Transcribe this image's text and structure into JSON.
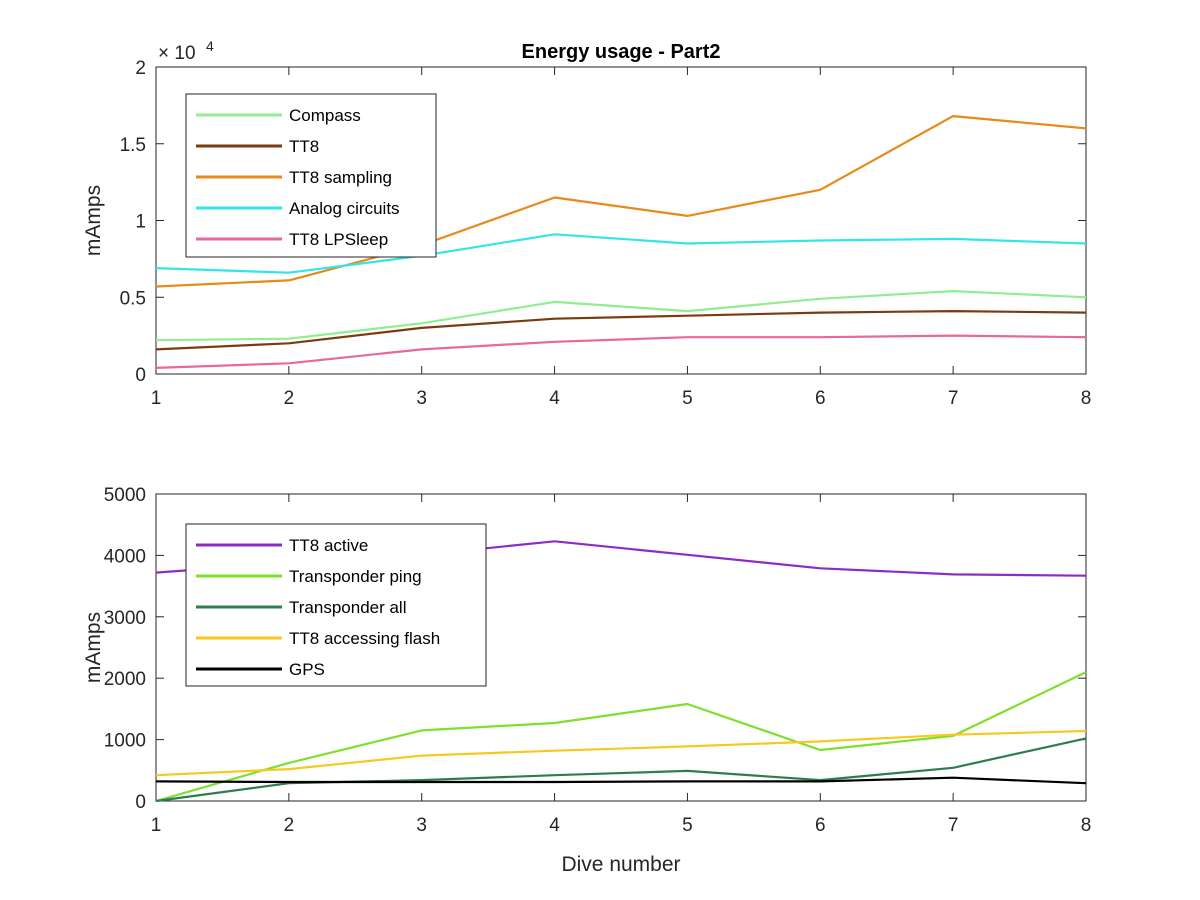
{
  "chart_data": [
    {
      "type": "line",
      "title": "Energy usage - Part2",
      "xlabel": "",
      "ylabel": "mAmps",
      "x": [
        1,
        2,
        3,
        4,
        5,
        6,
        7,
        8
      ],
      "xlim": [
        1,
        8
      ],
      "ylim": [
        0,
        20000
      ],
      "xticks": [
        "1",
        "2",
        "3",
        "4",
        "5",
        "6",
        "7",
        "8"
      ],
      "yticks": [
        0,
        5000,
        10000,
        15000,
        20000
      ],
      "ytick_labels": [
        "0",
        "0.5",
        "1",
        "1.5",
        "2"
      ],
      "y_exponent_label": "× 10",
      "y_exponent_power": "4",
      "grid": false,
      "legend_position": "top-left",
      "series": [
        {
          "name": "Compass",
          "color": "#90ee90",
          "values": [
            2200,
            2300,
            3300,
            4700,
            4100,
            4900,
            5400,
            5000
          ]
        },
        {
          "name": "TT8",
          "color": "#7a3b10",
          "values": [
            1600,
            2000,
            3000,
            3600,
            3800,
            4000,
            4100,
            4000
          ]
        },
        {
          "name": "TT8 sampling",
          "color": "#e8891a",
          "values": [
            5700,
            6100,
            8400,
            11500,
            10300,
            12000,
            16800,
            16000
          ]
        },
        {
          "name": "Analog circuits",
          "color": "#30e6e6",
          "values": [
            6900,
            6600,
            7700,
            9100,
            8500,
            8700,
            8800,
            8500
          ]
        },
        {
          "name": "TT8 LPSleep",
          "color": "#e6689e",
          "values": [
            400,
            700,
            1600,
            2100,
            2400,
            2400,
            2500,
            2400
          ]
        }
      ]
    },
    {
      "type": "line",
      "title": "",
      "xlabel": "Dive number",
      "ylabel": "mAmps",
      "x": [
        1,
        2,
        3,
        4,
        5,
        6,
        7,
        8
      ],
      "xlim": [
        1,
        8
      ],
      "ylim": [
        0,
        5000
      ],
      "xticks": [
        "1",
        "2",
        "3",
        "4",
        "5",
        "6",
        "7",
        "8"
      ],
      "yticks": [
        0,
        1000,
        2000,
        3000,
        4000,
        5000
      ],
      "ytick_labels": [
        "0",
        "1000",
        "2000",
        "3000",
        "4000",
        "5000"
      ],
      "grid": false,
      "legend_position": "top-left",
      "series": [
        {
          "name": "TT8 active",
          "color": "#8b2cc4",
          "values": [
            3720,
            3880,
            4010,
            4230,
            4010,
            3790,
            3690,
            3670
          ]
        },
        {
          "name": "Transponder ping",
          "color": "#7ee02a",
          "values": [
            0,
            620,
            1150,
            1270,
            1580,
            830,
            1060,
            2100
          ]
        },
        {
          "name": "Transponder all",
          "color": "#2e7d4f",
          "values": [
            0,
            290,
            340,
            420,
            490,
            340,
            540,
            1020
          ]
        },
        {
          "name": "TT8 accessing flash",
          "color": "#f7c81e",
          "values": [
            420,
            520,
            740,
            820,
            890,
            970,
            1080,
            1140
          ]
        },
        {
          "name": "GPS",
          "color": "#000000",
          "values": [
            320,
            310,
            310,
            310,
            320,
            320,
            380,
            290
          ]
        }
      ]
    }
  ]
}
